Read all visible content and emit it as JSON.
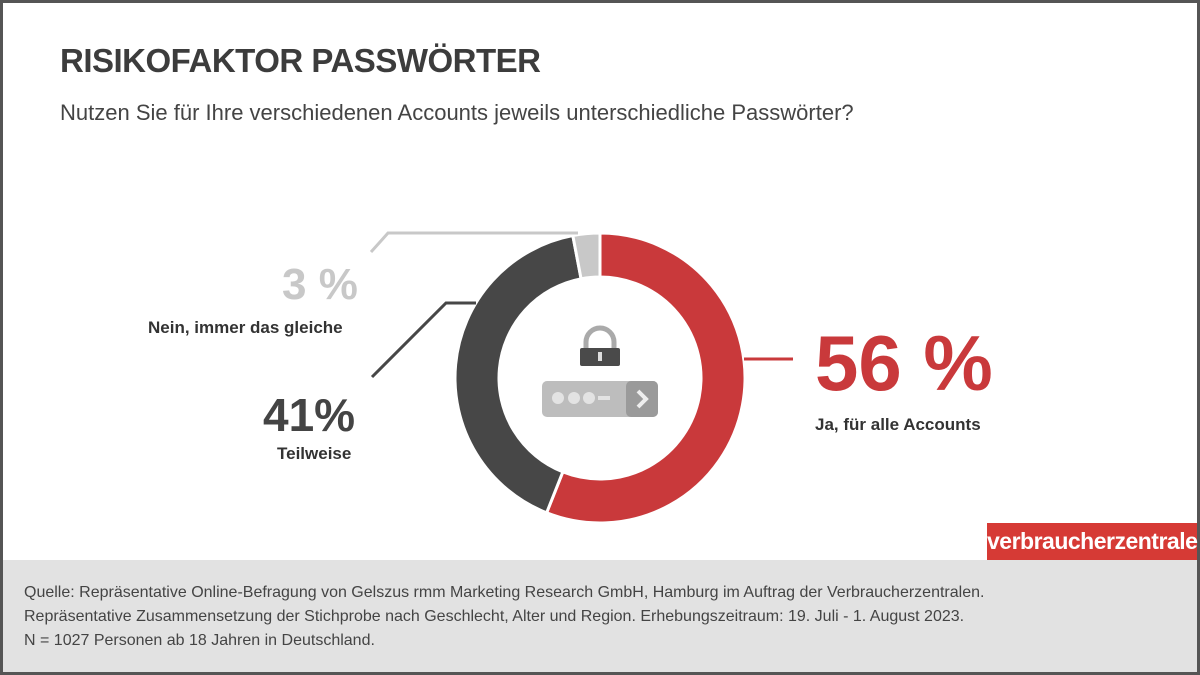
{
  "title": "RISIKOFAKTOR PASSWÖRTER",
  "subtitle": "Nutzen Sie für Ihre verschiedenen Accounts jeweils unterschiedliche Passwörter?",
  "chart_data": {
    "type": "pie",
    "variant": "donut",
    "slices": [
      {
        "label": "Ja, für alle Accounts",
        "value": 56,
        "display": "56 %",
        "color": "#c9393b"
      },
      {
        "label": "Teilweise",
        "value": 41,
        "display": "41%",
        "color": "#474747"
      },
      {
        "label": "Nein, immer das gleiche",
        "value": 3,
        "display": "3 %",
        "color": "#c8c8c8"
      }
    ],
    "center_icons": [
      "lock-icon",
      "password-field-icon"
    ]
  },
  "logo": "verbraucherzentrale",
  "footer": {
    "lines": [
      "Quelle: Repräsentative  Online-Befragung von Gelszus rmm Marketing Research GmbH, Hamburg im Auftrag der Verbraucherzentralen.",
      "Repräsentative  Zusammensetzung der Stichprobe nach Geschlecht, Alter und Region. Erhebungszeitraum: 19. Juli - 1. August 2023.",
      "N = 1027 Personen ab 18 Jahren in Deutschland."
    ]
  }
}
